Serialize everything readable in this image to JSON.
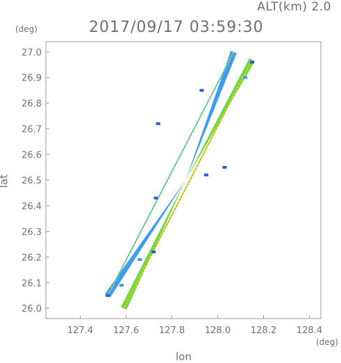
{
  "header": {
    "altitude_label": "ALT(km) 2.0",
    "timestamp": "2017/09/17 03:59:30"
  },
  "chart_data": {
    "type": "scatter",
    "xlabel": "lon",
    "ylabel": "lat",
    "x_unit": "(deg)",
    "y_unit": "(deg)",
    "xlim": [
      127.25,
      128.45
    ],
    "ylim": [
      25.96,
      27.04
    ],
    "xticks": [
      127.4,
      127.6,
      127.8,
      128.0,
      128.2,
      128.4
    ],
    "yticks": [
      26.0,
      26.1,
      26.2,
      26.3,
      26.4,
      26.5,
      26.6,
      26.7,
      26.8,
      26.9,
      27.0
    ],
    "grid": false,
    "swaths": [
      {
        "from": [
          127.52,
          26.05
        ],
        "to": [
          128.07,
          27.0
        ],
        "color": "#3c9cf0",
        "core_color": "#60e0b0"
      },
      {
        "from": [
          127.59,
          26.0
        ],
        "to": [
          128.15,
          26.97
        ],
        "color": "#6fd84a",
        "core_color": "#c8e020"
      }
    ],
    "echoes": [
      {
        "lon": 127.52,
        "lat": 26.05,
        "color": "#2a5ae0"
      },
      {
        "lon": 127.58,
        "lat": 26.09,
        "color": "#3c9cf0"
      },
      {
        "lon": 127.66,
        "lat": 26.19,
        "color": "#3c9cf0"
      },
      {
        "lon": 127.72,
        "lat": 26.22,
        "color": "#2a5ae0"
      },
      {
        "lon": 127.73,
        "lat": 26.43,
        "color": "#2a5ae0"
      },
      {
        "lon": 127.74,
        "lat": 26.72,
        "color": "#2a5ae0"
      },
      {
        "lon": 127.93,
        "lat": 26.85,
        "color": "#2a5ae0"
      },
      {
        "lon": 127.95,
        "lat": 26.52,
        "color": "#2a5ae0"
      },
      {
        "lon": 128.03,
        "lat": 26.55,
        "color": "#2a5ae0"
      },
      {
        "lon": 128.12,
        "lat": 26.9,
        "color": "#3c9cf0"
      },
      {
        "lon": 128.15,
        "lat": 26.96,
        "color": "#2a5ae0"
      }
    ]
  }
}
